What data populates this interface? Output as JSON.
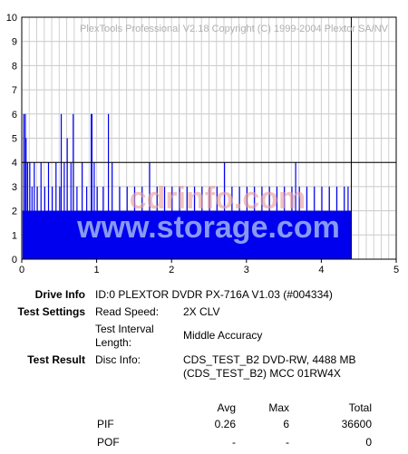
{
  "chart_data": {
    "type": "bar",
    "title": "PlexTools Professional V2.18 Copyright (C) 1999-2004 Plextor SA/NV",
    "xlim": [
      0,
      5
    ],
    "ylim": [
      0,
      10
    ],
    "x_ticks": [
      "0",
      "1",
      "2",
      "3",
      "4",
      "5"
    ],
    "y_ticks": [
      "0",
      "1",
      "2",
      "3",
      "4",
      "5",
      "6",
      "7",
      "8",
      "9",
      "10"
    ],
    "grid": true,
    "reference_line_y": 4,
    "data_end_x": 4.4,
    "baseline_level": 2,
    "series": [
      {
        "color": "#0000ee",
        "spikes": [
          [
            0.02,
            6
          ],
          [
            0.04,
            6
          ],
          [
            0.05,
            5
          ],
          [
            0.07,
            4
          ],
          [
            0.1,
            4
          ],
          [
            0.13,
            3
          ],
          [
            0.16,
            4
          ],
          [
            0.2,
            3
          ],
          [
            0.25,
            4
          ],
          [
            0.3,
            3
          ],
          [
            0.35,
            4
          ],
          [
            0.4,
            3
          ],
          [
            0.45,
            4
          ],
          [
            0.5,
            3
          ],
          [
            0.52,
            6
          ],
          [
            0.56,
            4
          ],
          [
            0.6,
            5
          ],
          [
            0.65,
            4
          ],
          [
            0.68,
            6
          ],
          [
            0.73,
            3
          ],
          [
            0.8,
            4
          ],
          [
            0.86,
            3
          ],
          [
            0.92,
            6
          ],
          [
            0.93,
            6
          ],
          [
            0.96,
            4
          ],
          [
            1.0,
            3
          ],
          [
            1.08,
            3
          ],
          [
            1.15,
            6
          ],
          [
            1.2,
            4
          ],
          [
            1.3,
            3
          ],
          [
            1.4,
            3
          ],
          [
            1.5,
            3
          ],
          [
            1.6,
            3
          ],
          [
            1.7,
            4
          ],
          [
            1.8,
            3
          ],
          [
            1.9,
            3
          ],
          [
            2.0,
            3
          ],
          [
            2.1,
            3
          ],
          [
            2.2,
            3
          ],
          [
            2.3,
            3
          ],
          [
            2.4,
            3
          ],
          [
            2.5,
            3
          ],
          [
            2.6,
            3
          ],
          [
            2.7,
            4
          ],
          [
            2.8,
            3
          ],
          [
            2.9,
            3
          ],
          [
            3.0,
            3
          ],
          [
            3.1,
            3
          ],
          [
            3.2,
            3
          ],
          [
            3.3,
            3
          ],
          [
            3.4,
            3
          ],
          [
            3.5,
            3
          ],
          [
            3.6,
            3
          ],
          [
            3.65,
            4
          ],
          [
            3.7,
            3
          ],
          [
            3.8,
            3
          ],
          [
            3.9,
            3
          ],
          [
            4.0,
            3
          ],
          [
            4.1,
            3
          ],
          [
            4.2,
            3
          ],
          [
            4.3,
            3
          ],
          [
            4.35,
            3
          ]
        ]
      }
    ]
  },
  "watermark": {
    "top": "cdrinfo.com",
    "bottom": "www.storage.com"
  },
  "info": {
    "drive_info_label": "Drive Info",
    "drive_info_value": "ID:0 PLEXTOR DVDR PX-716A V1.03 (#004334)",
    "test_settings_label": "Test Settings",
    "read_speed_label": "Read Speed:",
    "read_speed_value": "2X CLV",
    "interval_label_1": "Test Interval",
    "interval_label_2": "Length:",
    "interval_value": "Middle Accuracy",
    "test_result_label": "Test Result",
    "disc_info_label": "Disc Info:",
    "disc_info_value_1": "CDS_TEST_B2 DVD-RW, 4488 MB",
    "disc_info_value_2": "(CDS_TEST_B2) MCC 01RW4X"
  },
  "results": {
    "headers": {
      "avg": "Avg",
      "max": "Max",
      "total": "Total"
    },
    "rows": [
      {
        "name": "PIF",
        "avg": "0.26",
        "max": "6",
        "total": "36600"
      },
      {
        "name": "POF",
        "avg": "-",
        "max": "-",
        "total": "0"
      }
    ]
  }
}
